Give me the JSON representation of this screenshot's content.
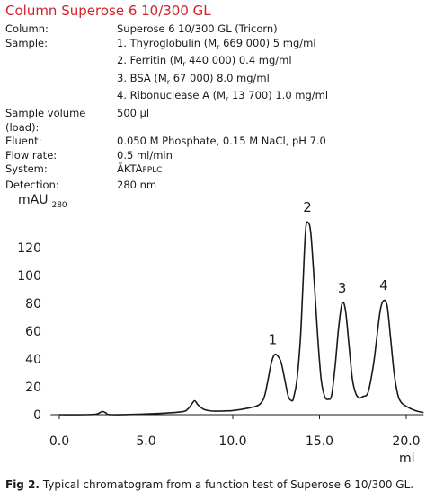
{
  "title": "Column Superose 6 10/300 GL",
  "meta": {
    "column": {
      "label": "Column:",
      "value": "Superose 6 10/300 GL (Tricorn)"
    },
    "sample": {
      "label": "Sample:",
      "items": [
        {
          "pre": "1. Thyroglobulin (M",
          "sub": "r",
          "post": " 669 000) 5 mg/ml"
        },
        {
          "pre": "2. Ferritin (M",
          "sub": "r",
          "post": " 440 000) 0.4 mg/ml"
        },
        {
          "pre": "3. BSA (M",
          "sub": "r",
          "post": " 67 000) 8.0 mg/ml"
        },
        {
          "pre": "4. Ribonuclease A (M",
          "sub": "r",
          "post": " 13 700) 1.0 mg/ml"
        }
      ]
    },
    "sample_volume": {
      "label": "Sample volume (load):",
      "value": "500 µl"
    },
    "eluent": {
      "label": "Eluent:",
      "value": "0.050 M Phosphate, 0.15 M NaCl, pH 7.0"
    },
    "flow_rate": {
      "label": "Flow rate:",
      "value": "0.5 ml/min"
    },
    "system": {
      "label": "System:",
      "value_main": "ÄKTA",
      "value_small": "FPLC"
    },
    "detection": {
      "label": "Detection:",
      "value": "280 nm"
    }
  },
  "chart_data": {
    "type": "line",
    "ylabel": "mAU",
    "ylabel_sub": "280",
    "xlabel": "ml",
    "xlim": [
      -0.5,
      21
    ],
    "ylim": [
      0,
      145
    ],
    "x_ticks": [
      0,
      5,
      10,
      15,
      20
    ],
    "x_tick_labels": [
      "0.0",
      "5.0",
      "10.0",
      "15.0",
      "20.0"
    ],
    "y_ticks": [
      0,
      20,
      40,
      60,
      80,
      100,
      120
    ],
    "y_tick_labels": [
      "0",
      "20",
      "40",
      "60",
      "80",
      "100",
      "120"
    ],
    "series": [
      {
        "x": [
          0,
          1.5,
          2.1,
          2.3,
          2.5,
          2.7,
          3.0,
          5.0,
          7.0,
          7.4,
          7.6,
          7.8,
          8.0,
          8.3,
          8.6,
          9.0,
          10.0,
          11.0,
          11.5,
          11.8,
          12.0,
          12.2,
          12.4,
          12.6,
          12.8,
          13.0,
          13.2,
          13.4,
          13.5,
          13.7,
          13.9,
          14.05,
          14.2,
          14.35,
          14.5,
          14.7,
          14.9,
          15.1,
          15.3,
          15.5,
          15.7,
          15.9,
          16.1,
          16.3,
          16.5,
          16.7,
          16.9,
          17.1,
          17.3,
          17.5,
          17.8,
          18.1,
          18.3,
          18.5,
          18.7,
          18.9,
          19.1,
          19.3,
          19.5,
          19.7,
          20.0,
          20.5,
          21.0
        ],
        "y": [
          0,
          0,
          0.3,
          1.2,
          2.3,
          1.2,
          0,
          0.5,
          2,
          4,
          7,
          10,
          7,
          4,
          3,
          2.5,
          3,
          5,
          7,
          12,
          23,
          36,
          43,
          42,
          37,
          25,
          13,
          10,
          12,
          25,
          55,
          95,
          133,
          138,
          130,
          95,
          55,
          25,
          13,
          11,
          14,
          35,
          62,
          80,
          75,
          50,
          25,
          15,
          12,
          13,
          16,
          35,
          55,
          75,
          82,
          78,
          55,
          30,
          15,
          9,
          6,
          3,
          1.5
        ]
      }
    ],
    "annotations": [
      {
        "text": "1",
        "x": 12.3,
        "y": 43
      },
      {
        "text": "2",
        "x": 14.3,
        "y": 138
      },
      {
        "text": "3",
        "x": 16.3,
        "y": 80
      },
      {
        "text": "4",
        "x": 18.7,
        "y": 82
      }
    ]
  },
  "caption": {
    "bold": "Fig 2.",
    "text": " Typical chromatogram from a function test of Superose 6 10/300 GL."
  }
}
